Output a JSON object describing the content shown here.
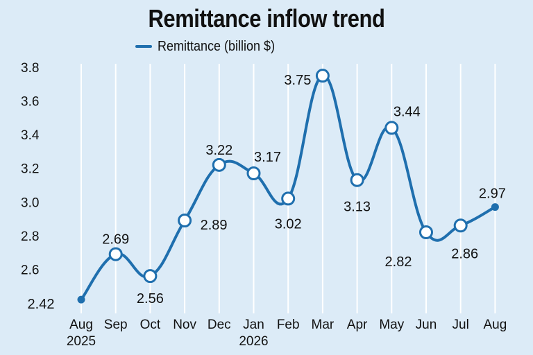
{
  "chart_data": {
    "type": "line",
    "title": "Remittance inflow trend",
    "xlabel": "",
    "ylabel": "",
    "categories": [
      [
        "Aug",
        "2025"
      ],
      [
        "Sep",
        ""
      ],
      [
        "Oct",
        ""
      ],
      [
        "Nov",
        ""
      ],
      [
        "Dec",
        ""
      ],
      [
        "Jan",
        "2026"
      ],
      [
        "Feb",
        ""
      ],
      [
        "Mar",
        ""
      ],
      [
        "Apr",
        ""
      ],
      [
        "May",
        ""
      ],
      [
        "Jun",
        ""
      ],
      [
        "Jul",
        ""
      ],
      [
        "Aug",
        ""
      ]
    ],
    "series": [
      {
        "name": "Remittance (billion $)",
        "values": [
          2.42,
          2.69,
          2.56,
          2.89,
          3.22,
          3.17,
          3.02,
          3.75,
          3.13,
          3.44,
          2.82,
          2.86,
          2.97
        ],
        "labels": [
          "2.42",
          "2.69",
          "2.56",
          "2.89",
          "3.22",
          "3.17",
          "3.02",
          "3.75",
          "3.13",
          "3.44",
          "2.82",
          "2.86",
          "2.97"
        ]
      }
    ],
    "ylim": [
      2.4,
      3.8
    ],
    "yticks": [
      "2.6",
      "2.8",
      "3.0",
      "3.2",
      "3.4",
      "3.6",
      "3.8"
    ],
    "grid": "vertical",
    "legend_position": "top",
    "colors": {
      "line": "#1f6fae",
      "grid": "#ffffff",
      "background": "#dcebf7",
      "marker_fill": "#ffffff"
    }
  }
}
